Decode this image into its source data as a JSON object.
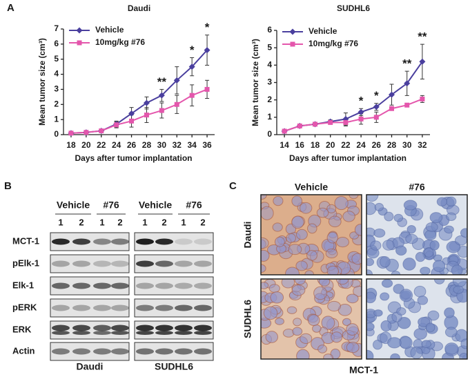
{
  "panels": {
    "a": "A",
    "b": "B",
    "c": "C"
  },
  "chart_data": [
    {
      "type": "line",
      "title": "Daudi",
      "x_label": "Days after tumor implantation",
      "y_label": "Mean tumor size (cm³)",
      "x": [
        18,
        20,
        22,
        24,
        26,
        28,
        30,
        32,
        34,
        36
      ],
      "xlim": [
        17,
        37
      ],
      "xticks": [
        18,
        20,
        22,
        24,
        26,
        28,
        30,
        32,
        34,
        36
      ],
      "ylim": [
        0,
        7
      ],
      "yticks": [
        0,
        1,
        2,
        3,
        4,
        5,
        6,
        7
      ],
      "legend": "upper left",
      "series": [
        {
          "name": "Vehicle",
          "color": "#4a3f9e",
          "marker": "diamond",
          "values": [
            0.1,
            0.15,
            0.25,
            0.7,
            1.4,
            2.1,
            2.6,
            3.6,
            4.5,
            5.6
          ],
          "errors": [
            0.05,
            0.05,
            0.1,
            0.2,
            0.4,
            0.4,
            0.4,
            0.9,
            0.6,
            1.0
          ]
        },
        {
          "name": "10mg/kg #76",
          "color": "#e456ac",
          "marker": "square",
          "values": [
            0.1,
            0.15,
            0.25,
            0.65,
            0.9,
            1.3,
            1.6,
            2.0,
            2.6,
            3.0
          ],
          "errors": [
            0.05,
            0.05,
            0.1,
            0.2,
            0.4,
            0.5,
            0.5,
            0.6,
            0.7,
            0.6
          ]
        }
      ],
      "annotations": [
        {
          "x": 30,
          "text": "**"
        },
        {
          "x": 34,
          "text": "*"
        },
        {
          "x": 36,
          "text": "*"
        }
      ]
    },
    {
      "type": "line",
      "title": "SUDHL6",
      "x_label": "Days after tumor implantation",
      "y_label": "Mean tumor size (cm³)",
      "x": [
        14,
        16,
        18,
        20,
        22,
        24,
        26,
        28,
        30,
        32
      ],
      "xlim": [
        13,
        33
      ],
      "xticks": [
        14,
        16,
        18,
        20,
        22,
        24,
        26,
        28,
        30,
        32
      ],
      "ylim": [
        0,
        6
      ],
      "yticks": [
        0,
        1,
        2,
        3,
        4,
        5,
        6
      ],
      "legend": "upper left",
      "series": [
        {
          "name": "Vehicle",
          "color": "#4a3f9e",
          "marker": "diamond",
          "values": [
            0.2,
            0.5,
            0.6,
            0.75,
            0.9,
            1.3,
            1.6,
            2.3,
            2.95,
            4.2
          ],
          "errors": [
            0.05,
            0.1,
            0.1,
            0.1,
            0.35,
            0.2,
            0.2,
            0.6,
            0.7,
            1.0
          ]
        },
        {
          "name": "10mg/kg #76",
          "color": "#e456ac",
          "marker": "square",
          "values": [
            0.2,
            0.5,
            0.6,
            0.7,
            0.7,
            0.9,
            1.0,
            1.5,
            1.7,
            2.05
          ],
          "errors": [
            0.05,
            0.1,
            0.1,
            0.1,
            0.2,
            0.3,
            0.3,
            0.1,
            0.1,
            0.2
          ]
        }
      ],
      "annotations": [
        {
          "x": 24,
          "text": "*"
        },
        {
          "x": 26,
          "text": "*"
        },
        {
          "x": 30,
          "text": "**"
        },
        {
          "x": 32,
          "text": "**"
        }
      ]
    }
  ],
  "blot": {
    "groups": [
      "Vehicle",
      "#76",
      "Vehicle",
      "#76"
    ],
    "lanes": [
      "1",
      "2",
      "1",
      "2",
      "1",
      "2",
      "1",
      "2"
    ],
    "rows": [
      "MCT-1",
      "pElk-1",
      "Elk-1",
      "pERK",
      "ERK",
      "Actin"
    ],
    "cell_lines": [
      "Daudi",
      "SUDHL6"
    ]
  },
  "ihc": {
    "columns": [
      "Vehicle",
      "#76"
    ],
    "rows": [
      "Daudi",
      "SUDHL6"
    ],
    "stain": "MCT-1"
  }
}
